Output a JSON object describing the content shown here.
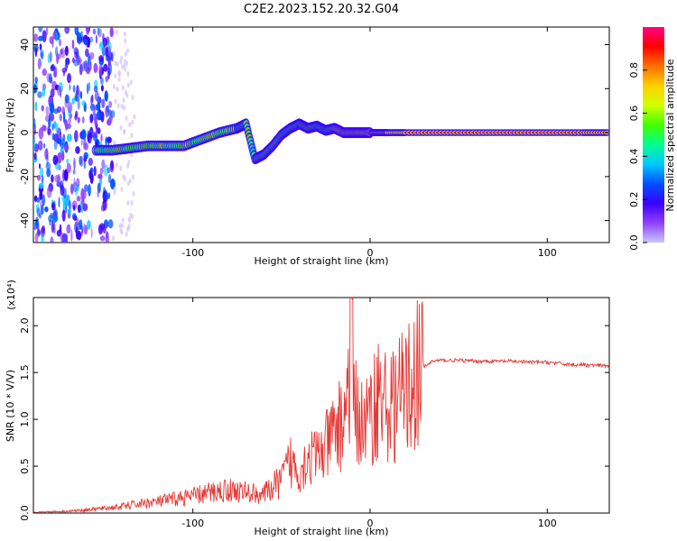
{
  "title": "C2E2.2023.152.20.32.G04",
  "chart_data": [
    {
      "type": "heatmap",
      "title": "C2E2.2023.152.20.32.G04",
      "xlabel": "Height of straight line (km)",
      "ylabel": "Frequency (Hz)",
      "xlim": [
        -190,
        135
      ],
      "ylim": [
        -50,
        48
      ],
      "x_ticks": [
        -100,
        0,
        100
      ],
      "y_ticks": [
        -40,
        -20,
        0,
        20,
        40
      ],
      "colorbar": {
        "label": "Normalized spectral amplitude",
        "range": [
          0,
          1
        ],
        "ticks": [
          "0.0",
          "0.2",
          "0.4",
          "0.6",
          "0.8"
        ],
        "colors": [
          "#c8c8ff",
          "#9040ff",
          "#3a00ff",
          "#0050ff",
          "#00c8ff",
          "#00ff90",
          "#40ff00",
          "#d0ff00",
          "#ffd000",
          "#ff7000",
          "#ff0000",
          "#ff0080"
        ]
      },
      "series": [
        {
          "points": [
            [
              -155,
              -8
            ],
            [
              -145,
              -8
            ],
            [
              -135,
              -7
            ],
            [
              -125,
              -6
            ],
            [
              -115,
              -6
            ],
            [
              -105,
              -6
            ],
            [
              -95,
              -3
            ],
            [
              -85,
              0
            ],
            [
              -75,
              2
            ],
            [
              -70,
              4
            ],
            [
              -65,
              -12
            ],
            [
              -60,
              -10
            ],
            [
              -55,
              -6
            ],
            [
              -50,
              -1
            ],
            [
              -45,
              2
            ],
            [
              -40,
              4
            ],
            [
              -35,
              2
            ],
            [
              -30,
              3
            ],
            [
              -25,
              1
            ],
            [
              -20,
              2
            ],
            [
              -15,
              0
            ],
            [
              -10,
              0
            ],
            [
              -5,
              0
            ],
            [
              0,
              0
            ],
            [
              5,
              0
            ],
            [
              10,
              0
            ],
            [
              20,
              0
            ],
            [
              40,
              0
            ],
            [
              60,
              0
            ],
            [
              80,
              0
            ],
            [
              100,
              0
            ],
            [
              120,
              0
            ],
            [
              135,
              0
            ]
          ]
        }
      ]
    },
    {
      "type": "line",
      "xlabel": "Height of straight line (km)",
      "ylabel": "SNR (10 * V/V)",
      "y_multiplier": "(x10⁴)",
      "xlim": [
        -190,
        135
      ],
      "ylim": [
        0,
        2.3
      ],
      "x_ticks": [
        -100,
        0,
        100
      ],
      "y_ticks": [
        "0.0",
        "0.5",
        "1.0",
        "1.5",
        "2.0"
      ],
      "color": "#e53935",
      "series": [
        {
          "x": [
            -190,
            -170,
            -150,
            -140,
            -130,
            -120,
            -110,
            -100,
            -90,
            -80,
            -70,
            -60,
            -50,
            -45,
            -40,
            -35,
            -30,
            -25,
            -20,
            -15,
            -12,
            -10,
            -8,
            -5,
            0,
            5,
            10,
            15,
            20,
            25,
            30,
            35,
            40,
            50,
            60,
            70,
            80,
            90,
            100,
            110,
            120,
            135
          ],
          "y": [
            0.01,
            0.02,
            0.05,
            0.07,
            0.1,
            0.12,
            0.15,
            0.18,
            0.22,
            0.25,
            0.22,
            0.2,
            0.35,
            0.55,
            0.45,
            0.6,
            0.6,
            0.7,
            0.85,
            1.0,
            1.4,
            1.8,
            1.1,
            0.95,
            1.0,
            1.3,
            1.1,
            1.2,
            1.3,
            1.45,
            1.55,
            1.62,
            1.63,
            1.63,
            1.62,
            1.62,
            1.62,
            1.61,
            1.61,
            1.59,
            1.58,
            1.57
          ]
        }
      ]
    }
  ]
}
